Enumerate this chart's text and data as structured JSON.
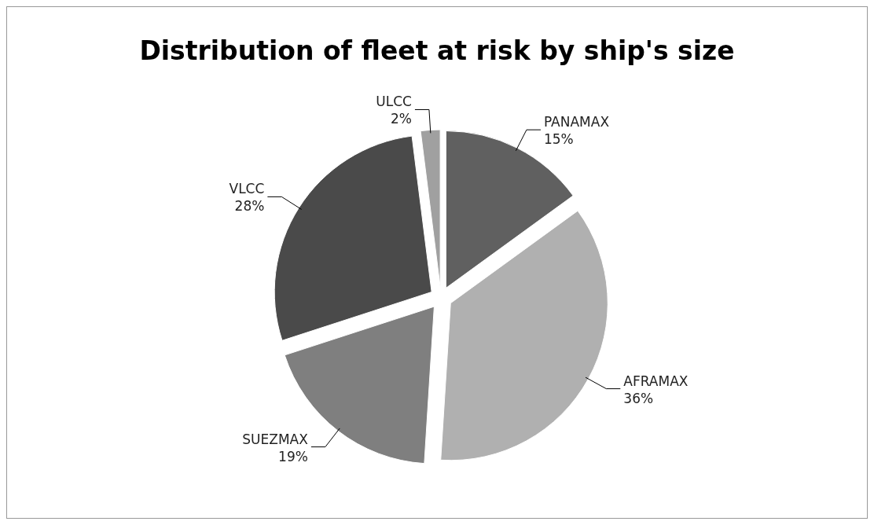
{
  "chart_data": {
    "type": "pie",
    "title": "Distribution of fleet at risk by ship's size",
    "categories": [
      "PANAMAX",
      "AFRAMAX",
      "SUEZMAX",
      "VLCC",
      "ULCC"
    ],
    "values": [
      15,
      36,
      19,
      28,
      2
    ],
    "colors": [
      "#606060",
      "#b0b0b0",
      "#7f7f7f",
      "#4a4a4a",
      "#a0a0a0"
    ],
    "value_labels": [
      "15%",
      "36%",
      "19%",
      "28%",
      "2%"
    ]
  }
}
